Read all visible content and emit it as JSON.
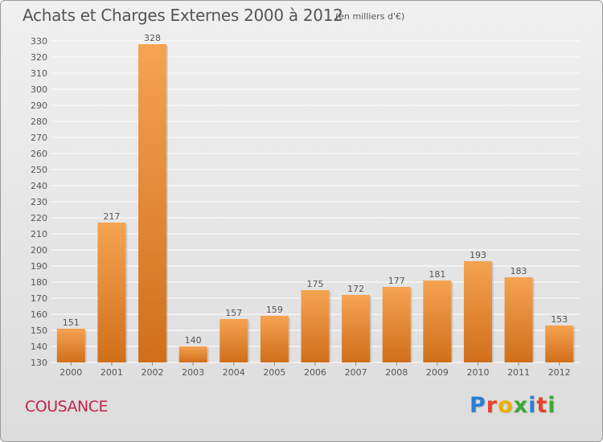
{
  "header": {
    "title": "Achats et Charges Externes 2000 à 2012",
    "unit": "(en milliers d'€)"
  },
  "footer": {
    "commune": "COUSANCE",
    "logo_text": "Proxiti",
    "logo_colors": [
      "#2a7fd4",
      "#e8412c",
      "#e8b000",
      "#3aa832",
      "#2a7fd4",
      "#e8412c",
      "#3aa832"
    ]
  },
  "colors": {
    "bar_light": "#f5a352",
    "bar_dark": "#d06f1a",
    "grid": "#ffffff",
    "text": "#555555"
  },
  "chart_data": {
    "type": "bar",
    "title": "Achats et Charges Externes 2000 à 2012",
    "categories": [
      "2000",
      "2001",
      "2002",
      "2003",
      "2004",
      "2005",
      "2006",
      "2007",
      "2008",
      "2009",
      "2010",
      "2011",
      "2012"
    ],
    "values": [
      151,
      217,
      328,
      140,
      157,
      159,
      175,
      172,
      177,
      181,
      193,
      183,
      153
    ],
    "ylim": [
      130,
      330
    ],
    "yticks": [
      130,
      140,
      150,
      160,
      170,
      180,
      190,
      200,
      210,
      220,
      230,
      240,
      250,
      260,
      270,
      280,
      290,
      300,
      310,
      320,
      330
    ],
    "grid": true,
    "data_labels": true
  }
}
